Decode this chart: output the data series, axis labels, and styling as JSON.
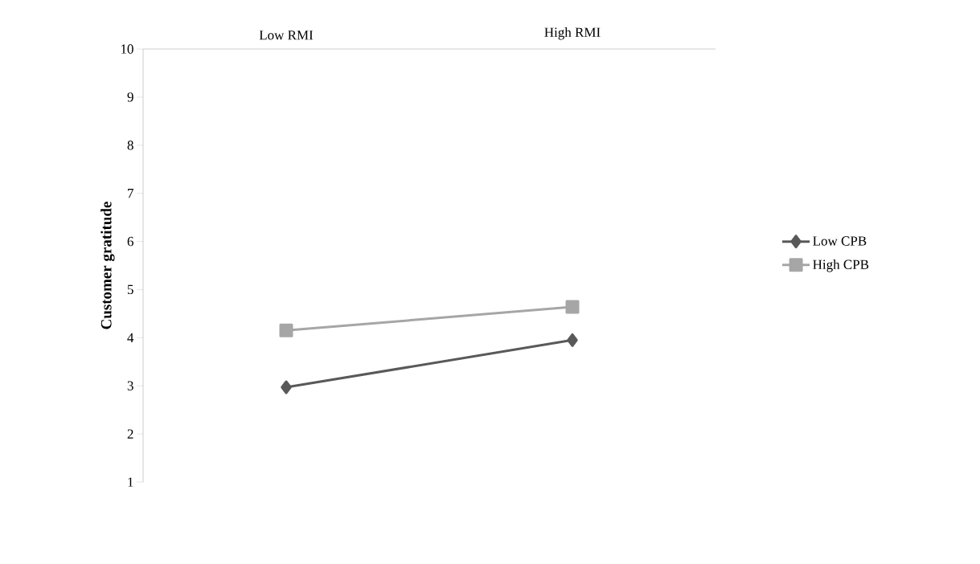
{
  "chart_data": {
    "type": "line",
    "ylabel": "Customer gratitude",
    "categories": [
      "Low RMI",
      "High RMI"
    ],
    "series": [
      {
        "name": "Low CPB",
        "color": "#595959",
        "marker": "diamond",
        "values": [
          2.97,
          3.95
        ]
      },
      {
        "name": "High CPB",
        "color": "#a6a6a6",
        "marker": "square",
        "values": [
          4.15,
          4.64
        ]
      }
    ],
    "ylim": [
      1,
      10
    ],
    "yticks": [
      1,
      2,
      3,
      4,
      5,
      6,
      7,
      8,
      9,
      10
    ],
    "legend": "right"
  }
}
